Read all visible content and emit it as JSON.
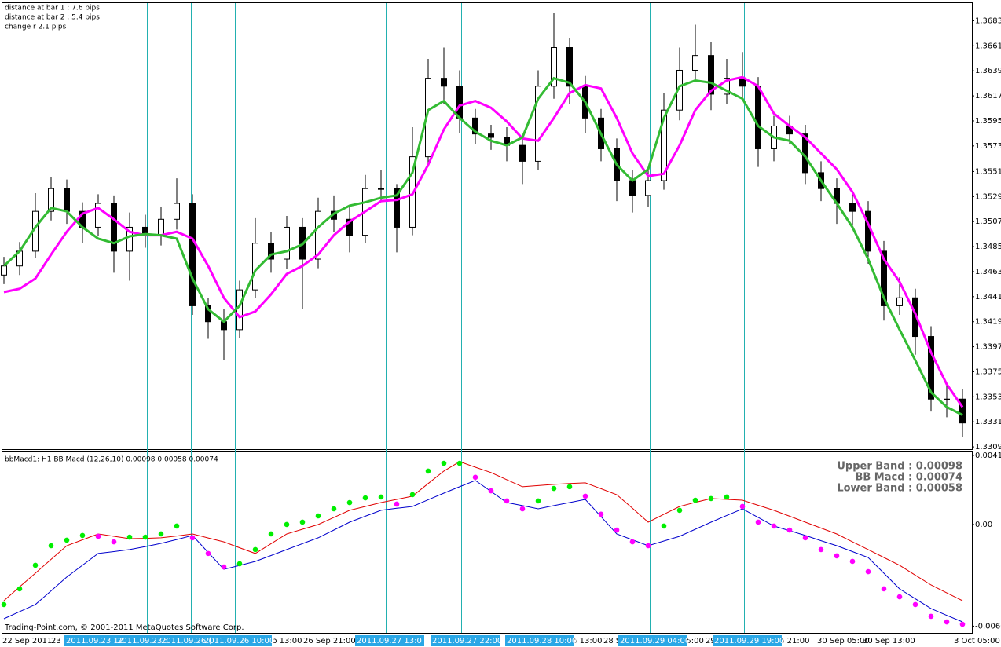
{
  "chart_data": [
    {
      "type": "candlestick",
      "annotations": [
        "distance at bar 1 : 7.6 pips",
        "distance at bar 2 : 5.4 pips",
        "change r 2.1 pips"
      ],
      "open": [
        1.346,
        1.3468,
        1.3481,
        1.3516,
        1.3536,
        1.3516,
        1.3502,
        1.3523,
        1.3481,
        1.3502,
        1.3495,
        1.3509,
        1.3523,
        1.3433,
        1.3419,
        1.3412,
        1.3447,
        1.3488,
        1.3474,
        1.3502,
        1.3474,
        1.3516,
        1.3509,
        1.3495,
        1.3536,
        1.3536,
        1.3502,
        1.3564,
        1.3633,
        1.3626,
        1.3598,
        1.3584,
        1.3581,
        1.3574,
        1.356,
        1.3626,
        1.366,
        1.3626,
        1.3598,
        1.3571,
        1.3543,
        1.353,
        1.3543,
        1.3605,
        1.364,
        1.3653,
        1.3619,
        1.3633,
        1.3626,
        1.3571,
        1.3591,
        1.3584,
        1.355,
        1.3536,
        1.3523,
        1.3516,
        1.3481,
        1.3433,
        1.344,
        1.3406,
        1.3351,
        1.3351
      ],
      "high": [
        1.3476,
        1.3489,
        1.3532,
        1.3546,
        1.3544,
        1.3524,
        1.3531,
        1.353,
        1.3515,
        1.3513,
        1.352,
        1.3545,
        1.3531,
        1.344,
        1.343,
        1.3455,
        1.351,
        1.3498,
        1.3512,
        1.351,
        1.3528,
        1.353,
        1.352,
        1.3548,
        1.3552,
        1.354,
        1.359,
        1.365,
        1.366,
        1.364,
        1.3606,
        1.3592,
        1.359,
        1.3582,
        1.364,
        1.369,
        1.3668,
        1.3635,
        1.3606,
        1.358,
        1.3552,
        1.3556,
        1.362,
        1.366,
        1.368,
        1.3665,
        1.365,
        1.3656,
        1.3634,
        1.36,
        1.36,
        1.3592,
        1.356,
        1.3545,
        1.3532,
        1.3525,
        1.349,
        1.3458,
        1.3448,
        1.3415,
        1.3365,
        1.336
      ],
      "low": [
        1.3452,
        1.346,
        1.3475,
        1.3508,
        1.3505,
        1.3488,
        1.3494,
        1.3462,
        1.3455,
        1.3484,
        1.3486,
        1.35,
        1.3425,
        1.3404,
        1.3385,
        1.3405,
        1.344,
        1.3462,
        1.3465,
        1.343,
        1.3466,
        1.3498,
        1.348,
        1.3488,
        1.3525,
        1.348,
        1.3495,
        1.3555,
        1.361,
        1.3585,
        1.3575,
        1.357,
        1.356,
        1.354,
        1.3552,
        1.3615,
        1.361,
        1.3585,
        1.356,
        1.3525,
        1.3515,
        1.352,
        1.3535,
        1.3596,
        1.363,
        1.3605,
        1.361,
        1.3615,
        1.3555,
        1.356,
        1.3575,
        1.354,
        1.3525,
        1.3505,
        1.35,
        1.347,
        1.342,
        1.3425,
        1.339,
        1.334,
        1.3335,
        1.3318
      ],
      "close": [
        1.3468,
        1.3481,
        1.3516,
        1.3536,
        1.3516,
        1.3502,
        1.3523,
        1.3481,
        1.3502,
        1.3495,
        1.3509,
        1.3523,
        1.3433,
        1.3419,
        1.3412,
        1.3447,
        1.3488,
        1.3474,
        1.3502,
        1.3474,
        1.3516,
        1.3509,
        1.3495,
        1.3536,
        1.3536,
        1.3502,
        1.3564,
        1.3633,
        1.3626,
        1.3598,
        1.3584,
        1.3581,
        1.3574,
        1.356,
        1.3626,
        1.366,
        1.3626,
        1.3598,
        1.3571,
        1.3543,
        1.353,
        1.3543,
        1.3605,
        1.364,
        1.3653,
        1.3619,
        1.3633,
        1.3626,
        1.3571,
        1.3591,
        1.3584,
        1.355,
        1.3536,
        1.3523,
        1.3516,
        1.3481,
        1.3433,
        1.344,
        1.3406,
        1.3351,
        1.3351,
        1.333
      ],
      "up_color": "#ffffff",
      "down_color": "#000000",
      "series": [
        {
          "color": "#ff00ff",
          "values": [
            1.3445,
            1.3448,
            1.3457,
            1.3478,
            1.3498,
            1.3514,
            1.3519,
            1.3509,
            1.3498,
            1.3495,
            1.3495,
            1.3498,
            1.3492,
            1.3468,
            1.344,
            1.3423,
            1.3428,
            1.3443,
            1.3461,
            1.3468,
            1.3478,
            1.3495,
            1.3507,
            1.3516,
            1.3525,
            1.3526,
            1.3531,
            1.3557,
            1.3588,
            1.3609,
            1.3613,
            1.3607,
            1.3595,
            1.358,
            1.3578,
            1.3598,
            1.362,
            1.3627,
            1.3624,
            1.3598,
            1.3567,
            1.3547,
            1.3549,
            1.3574,
            1.3605,
            1.3622,
            1.3631,
            1.3634,
            1.3626,
            1.3602,
            1.3591,
            1.3581,
            1.3567,
            1.3553,
            1.3533,
            1.3505,
            1.3474,
            1.3454,
            1.3426,
            1.3392,
            1.3364,
            1.3344
          ]
        },
        {
          "color": "#33bb33",
          "values": [
            1.3468,
            1.3481,
            1.3502,
            1.3519,
            1.3516,
            1.3502,
            1.3492,
            1.3488,
            1.3494,
            1.3496,
            1.3495,
            1.3492,
            1.3457,
            1.343,
            1.3419,
            1.3433,
            1.3464,
            1.3478,
            1.3481,
            1.3487,
            1.3502,
            1.3514,
            1.3521,
            1.3524,
            1.3528,
            1.353,
            1.355,
            1.3605,
            1.3613,
            1.3598,
            1.3586,
            1.3578,
            1.3574,
            1.3581,
            1.3615,
            1.3633,
            1.3629,
            1.3612,
            1.3584,
            1.3557,
            1.3543,
            1.3553,
            1.3598,
            1.3626,
            1.3631,
            1.3629,
            1.3622,
            1.3615,
            1.3591,
            1.3581,
            1.3578,
            1.3564,
            1.3543,
            1.3523,
            1.3502,
            1.3474,
            1.344,
            1.3412,
            1.3385,
            1.3357,
            1.3344,
            1.3337
          ]
        }
      ],
      "ylim": [
        1.3307,
        1.3699
      ],
      "yticks": [
        1.36835,
        1.36615,
        1.36395,
        1.36175,
        1.35955,
        1.35735,
        {
          "value": 1.3551,
          "label": "1.35510"
        },
        {
          "value": 1.3529,
          "label": "1.35290"
        },
        {
          "value": 1.3507,
          "label": "1.35070"
        },
        {
          "value": 1.3485,
          "label": "1.34850"
        },
        {
          "value": 1.3463,
          "label": "1.34630"
        },
        {
          "value": 1.3441,
          "label": "1.34410"
        },
        {
          "value": 1.3419,
          "label": "1.34190"
        },
        {
          "value": 1.3397,
          "label": "1.33970"
        },
        {
          "value": 1.3375,
          "label": "1.33750"
        },
        {
          "value": 1.3353,
          "label": "1.33530"
        },
        {
          "value": 1.3331,
          "label": "1.33310"
        },
        {
          "value": 1.3309,
          "label": "1.33090"
        }
      ]
    },
    {
      "type": "indicator",
      "title": "bbMacd1: H1 BB Macd (12,26,10) 0.00098 0.00058 0.00074",
      "legend_text": [
        "Upper Band : 0.00098",
        "BB Macd : 0.00074",
        "Lower Band : 0.00058"
      ],
      "series": [
        {
          "color": "#e00000",
          "values": [
            -0.00452,
            -0.0037,
            -0.00289,
            -0.00207,
            -0.00126,
            -0.00091,
            -0.00056,
            -0.0007,
            -0.00084,
            -0.00082,
            -0.00079,
            -0.00068,
            -0.00056,
            -0.0008,
            -0.00103,
            -0.00138,
            -0.00172,
            -0.00114,
            -0.00056,
            -0.00028,
            0,
            0.00042,
            0.00084,
            0.00107,
            0.0013,
            0.00149,
            0.00168,
            0.00243,
            0.00317,
            0.00373,
            0.0034,
            0.00308,
            0.00266,
            0.00224,
            0.00231,
            0.00238,
            0.00243,
            0.00247,
            0.00212,
            0.00177,
            0.00096,
            0.00014,
            0.00061,
            0.00107,
            0.00131,
            0.00154,
            0.00149,
            0.00144,
            0.00114,
            0.00084,
            0.00049,
            0.00014,
            -0.00021,
            -0.00056,
            -0.00103,
            -0.00149,
            -0.00196,
            -0.00242,
            -0.00301,
            -0.00359,
            -0.00406,
            -0.00452
          ]
        },
        {
          "color": "#0000cc",
          "values": [
            -0.00559,
            -0.00517,
            -0.00475,
            -0.00394,
            -0.00312,
            -0.00242,
            -0.00172,
            -0.00161,
            -0.00149,
            -0.00131,
            -0.00112,
            -0.00089,
            -0.00065,
            -0.00166,
            -0.00266,
            -0.00243,
            -0.00219,
            -0.00184,
            -0.00149,
            -0.00114,
            -0.00079,
            -0.00033,
            0.00014,
            0.00049,
            0.00084,
            0.00096,
            0.00107,
            0.00147,
            0.00186,
            0.00224,
            0.00261,
            0.00196,
            0.0013,
            0.00112,
            0.00093,
            0.00112,
            0.0013,
            0.00149,
            0.00047,
            -0.00056,
            -0.00091,
            -0.00126,
            -0.00098,
            -0.0007,
            -0.00028,
            0.00014,
            0.00054,
            0.00093,
            0.00042,
            -9e-05,
            -0.00037,
            -0.00065,
            -0.00096,
            -0.00126,
            -0.00161,
            -0.00196,
            -0.00289,
            -0.00382,
            -0.00441,
            -0.00499,
            -0.00539,
            -0.00578
          ]
        },
        {
          "style": "dots",
          "up_color": "#00ee00",
          "down_color": "#ff00ff",
          "values": [
            -0.00475,
            -0.00382,
            -0.00242,
            -0.00126,
            -0.00093,
            -0.00065,
            -0.0007,
            -0.00103,
            -0.00075,
            -0.00075,
            -0.00056,
            -9e-05,
            -0.00079,
            -0.00172,
            -0.00252,
            -0.00233,
            -0.00149,
            -0.00056,
            0,
            0.00014,
            0.00051,
            0.00093,
            0.0013,
            0.00158,
            0.00163,
            0.00121,
            0.00177,
            0.00317,
            0.00363,
            0.00363,
            0.0028,
            0.002,
            0.0014,
            0.00093,
            0.0014,
            0.00214,
            0.00224,
            0.00168,
            0.00061,
            -0.00033,
            -0.00103,
            -0.00126,
            -9e-05,
            0.00084,
            0.00144,
            0.00154,
            0.00163,
            0.00107,
            0.00014,
            -9e-05,
            -0.00033,
            -0.00079,
            -0.00149,
            -0.00186,
            -0.00219,
            -0.0028,
            -0.00382,
            -0.00429,
            -0.00475,
            -0.00545,
            -0.00578,
            -0.00592
          ]
        }
      ],
      "ylim": [
        -0.00643,
        0.00433
      ],
      "yticks": [
        0.0041,
        {
          "value": 0,
          "label": "0.00"
        },
        -0.00603
      ],
      "x_labels": [
        "22 Sep 2011",
        "23 S",
        "ep 13:00",
        "26 Sep 21:00",
        "0",
        "ep 13:00",
        "28 S",
        "05:00",
        "29",
        "ep 21:00",
        "30 Sep 05:00",
        "30 Sep 13:00",
        "3 Oct 05:00"
      ],
      "marker_labels": [
        "2011.09.23 12",
        "2011.09.23 :",
        "2011.09.26 (",
        "2011.09.26 10:00",
        "2011.09.27 13:0",
        "2011.09.27 22:00",
        "2011.09.28 10:00",
        "2011.09.29 04:00",
        "2011.09.29 19:00"
      ],
      "watermark": "Trading-Point.com, © 2001-2011 MetaQuotes Software Corp."
    }
  ]
}
